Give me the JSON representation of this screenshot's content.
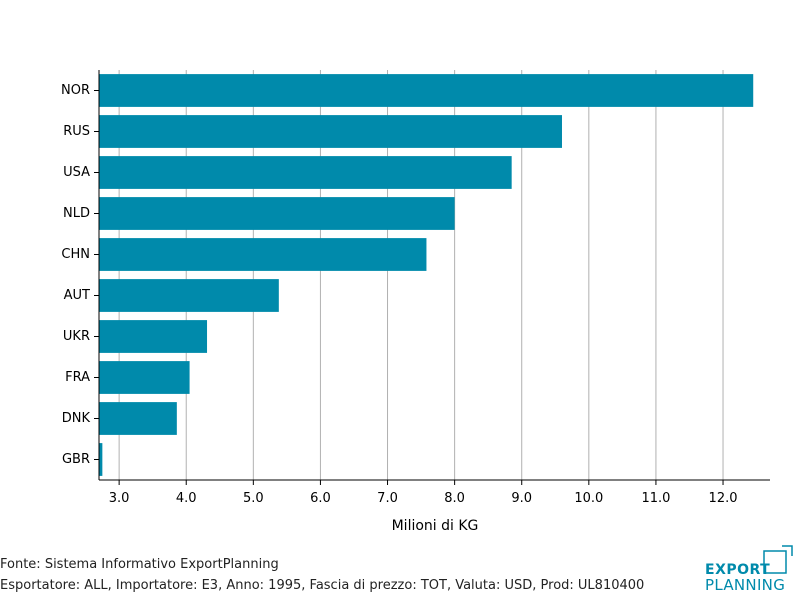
{
  "chart_data": {
    "type": "bar",
    "orientation": "horizontal",
    "categories": [
      "NOR",
      "RUS",
      "USA",
      "NLD",
      "CHN",
      "AUT",
      "UKR",
      "FRA",
      "DNK",
      "GBR"
    ],
    "values": [
      12.45,
      9.6,
      8.85,
      8.0,
      7.58,
      5.38,
      4.31,
      4.05,
      3.86,
      2.75
    ],
    "xlabel": "Milioni di KG",
    "xlim": [
      2.7,
      12.7
    ],
    "xticks": [
      "3.0",
      "4.0",
      "5.0",
      "6.0",
      "7.0",
      "8.0",
      "9.0",
      "10.0",
      "11.0",
      "12.0"
    ],
    "xtick_values": [
      3,
      4,
      5,
      6,
      7,
      8,
      9,
      10,
      11,
      12
    ],
    "grid": "vertical",
    "bar_color": "#008aab"
  },
  "footer": {
    "source": "Fonte: Sistema Informativo ExportPlanning",
    "details": "Esportatore: ALL, Importatore: E3, Anno: 1995, Fascia di prezzo: TOT, Valuta: USD, Prod: UL810400"
  },
  "logo": {
    "line1": "EXPORT",
    "line2": "PLANNING",
    "color": "#008aab"
  }
}
